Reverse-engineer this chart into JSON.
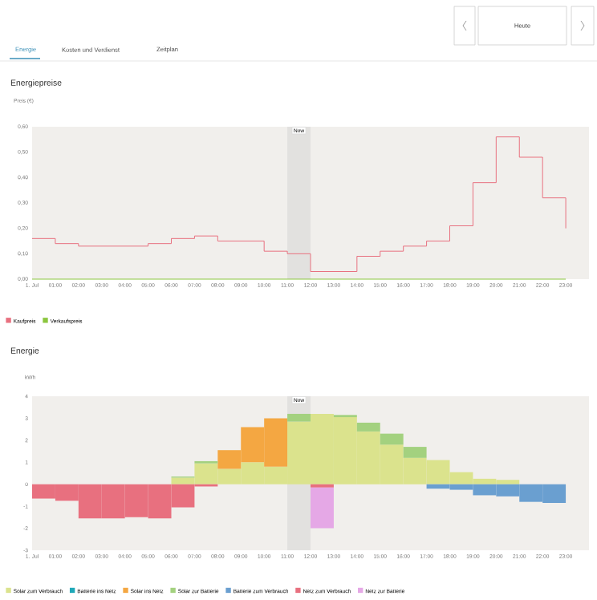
{
  "chart_data": [
    {
      "type": "step",
      "title": "Energiepreise",
      "ylabel": "Preis (€)",
      "annotations": [
        "Energie",
        "Kosten und Verdienst",
        "Zeitplan",
        "Heute"
      ],
      "x": [
        0,
        1,
        2,
        3,
        4,
        5,
        6,
        7,
        8,
        9,
        10,
        11,
        12,
        13,
        14,
        15,
        16,
        17,
        18,
        19,
        20,
        21,
        22,
        23
      ],
      "series": [
        {
          "name": "Kaufpreis",
          "color": "#e8707f",
          "values": [
            0.16,
            0.14,
            0.13,
            0.13,
            0.13,
            0.14,
            0.16,
            0.17,
            0.15,
            0.15,
            0.11,
            0.1,
            0.03,
            0.03,
            0.09,
            0.11,
            0.13,
            0.15,
            0.21,
            0.38,
            0.56,
            0.48,
            0.32,
            0.2
          ]
        },
        {
          "name": "Verkaufspreis",
          "color": "#8cc63f",
          "values": [
            0,
            0,
            0,
            0,
            0,
            0,
            0,
            0,
            0,
            0,
            0,
            0,
            0,
            0,
            0,
            0,
            0,
            0,
            0,
            0,
            0,
            0,
            0,
            0
          ]
        }
      ],
      "xlim": [
        0,
        24
      ],
      "xticks": [
        {
          "value": 0,
          "label": "1. Jul"
        },
        {
          "value": 1,
          "label": "01:00"
        },
        {
          "value": 2,
          "label": "02:00"
        },
        {
          "value": 3,
          "label": "03:00"
        },
        {
          "value": 4,
          "label": "04:00"
        },
        {
          "value": 5,
          "label": "05:00"
        },
        {
          "value": 6,
          "label": "06:00"
        },
        {
          "value": 7,
          "label": "07:00"
        },
        {
          "value": 8,
          "label": "08:00"
        },
        {
          "value": 9,
          "label": "09:00"
        },
        {
          "value": 10,
          "label": "10:00"
        },
        {
          "value": 11,
          "label": "11:00"
        },
        {
          "value": 12,
          "label": "12:00"
        },
        {
          "value": 13,
          "label": "13:00"
        },
        {
          "value": 14,
          "label": "14:00"
        },
        {
          "value": 15,
          "label": "15:00"
        },
        {
          "value": 16,
          "label": "16:00"
        },
        {
          "value": 17,
          "label": "17:00"
        },
        {
          "value": 18,
          "label": "18:00"
        },
        {
          "value": 19,
          "label": "19:00"
        },
        {
          "value": 20,
          "label": "20:00"
        },
        {
          "value": 21,
          "label": "21:00"
        },
        {
          "value": 22,
          "label": "22:00"
        },
        {
          "value": 23,
          "label": "23:00"
        }
      ],
      "ylim": [
        0,
        0.6
      ],
      "yticks": [
        {
          "value": 0,
          "label": "0,00"
        },
        {
          "value": 0.1,
          "label": "0,10"
        },
        {
          "value": 0.2,
          "label": "0,20"
        },
        {
          "value": 0.3,
          "label": "0,30"
        },
        {
          "value": 0.4,
          "label": "0,40"
        },
        {
          "value": 0.5,
          "label": "0,50"
        },
        {
          "value": 0.6,
          "label": "0,60"
        }
      ],
      "bands": [
        {
          "axis": "x",
          "from": 11,
          "to": 12,
          "label": "Now",
          "color": "#e2e1df"
        }
      ],
      "legend": "bottom left"
    },
    {
      "type": "bar",
      "stacked": true,
      "title": "Energie",
      "ylabel": "kWh",
      "x": [
        0.5,
        1.5,
        2.5,
        3.5,
        4.5,
        5.5,
        6.5,
        7.5,
        8.5,
        9.5,
        10.5,
        11.5,
        12.5,
        13.5,
        14.5,
        15.5,
        16.5,
        17.5,
        18.5,
        19.5,
        20.5,
        21.5,
        22.5
      ],
      "series": [
        {
          "name": "Solar zum Verbrauch",
          "color": "#dbe38d",
          "values": [
            null,
            null,
            null,
            null,
            null,
            null,
            0.3,
            0.95,
            0.7,
            1.0,
            0.8,
            2.85,
            3.2,
            3.05,
            2.4,
            1.8,
            1.2,
            1.1,
            0.55,
            0.25,
            0.2,
            null,
            null
          ]
        },
        {
          "name": "Batterie ins Netz",
          "color": "#1fa8b8",
          "values": [
            null,
            null,
            null,
            null,
            null,
            null,
            null,
            null,
            null,
            null,
            null,
            null,
            null,
            null,
            null,
            null,
            null,
            null,
            null,
            null,
            null,
            null,
            null
          ]
        },
        {
          "name": "Solar ins Netz",
          "color": "#f4a742",
          "values": [
            null,
            null,
            null,
            null,
            null,
            null,
            null,
            null,
            0.85,
            1.6,
            2.2,
            null,
            null,
            null,
            null,
            null,
            null,
            null,
            null,
            null,
            null,
            null,
            null
          ]
        },
        {
          "name": "Solar zur Batterie",
          "color": "#a3d17f",
          "values": [
            null,
            null,
            null,
            null,
            null,
            null,
            0.05,
            0.1,
            null,
            null,
            null,
            0.35,
            null,
            0.1,
            0.4,
            0.5,
            0.5,
            null,
            null,
            null,
            null,
            null,
            null
          ]
        },
        {
          "name": "Batterie zum Verbrauch",
          "color": "#6a9fd0",
          "values": [
            null,
            null,
            null,
            null,
            null,
            null,
            null,
            null,
            null,
            null,
            null,
            null,
            null,
            null,
            null,
            null,
            null,
            -0.2,
            -0.25,
            -0.5,
            -0.55,
            -0.8,
            -0.85
          ]
        },
        {
          "name": "Netz zum Verbrauch",
          "color": "#e8707f",
          "values": [
            -0.65,
            -0.75,
            -1.55,
            -1.55,
            -1.5,
            -1.55,
            -1.05,
            -0.1,
            null,
            null,
            null,
            null,
            -0.15,
            null,
            null,
            null,
            null,
            null,
            null,
            null,
            null,
            null,
            null
          ]
        },
        {
          "name": "Netz zur Batterie",
          "color": "#e5a8e6",
          "values": [
            null,
            null,
            null,
            null,
            null,
            null,
            null,
            null,
            null,
            null,
            null,
            null,
            -1.85,
            null,
            null,
            null,
            null,
            null,
            null,
            null,
            null,
            null,
            null
          ]
        }
      ],
      "xlim": [
        0,
        24
      ],
      "xticks": [
        {
          "value": 0,
          "label": "1. Jul"
        },
        {
          "value": 1,
          "label": "01:00"
        },
        {
          "value": 2,
          "label": "02:00"
        },
        {
          "value": 3,
          "label": "03:00"
        },
        {
          "value": 4,
          "label": "04:00"
        },
        {
          "value": 5,
          "label": "05:00"
        },
        {
          "value": 6,
          "label": "06:00"
        },
        {
          "value": 7,
          "label": "07:00"
        },
        {
          "value": 8,
          "label": "08:00"
        },
        {
          "value": 9,
          "label": "09:00"
        },
        {
          "value": 10,
          "label": "10:00"
        },
        {
          "value": 11,
          "label": "11:00"
        },
        {
          "value": 12,
          "label": "12:00"
        },
        {
          "value": 13,
          "label": "13:00"
        },
        {
          "value": 14,
          "label": "14:00"
        },
        {
          "value": 15,
          "label": "15:00"
        },
        {
          "value": 16,
          "label": "16:00"
        },
        {
          "value": 17,
          "label": "17:00"
        },
        {
          "value": 18,
          "label": "18:00"
        },
        {
          "value": 19,
          "label": "19:00"
        },
        {
          "value": 20,
          "label": "20:00"
        },
        {
          "value": 21,
          "label": "21:00"
        },
        {
          "value": 22,
          "label": "22:00"
        },
        {
          "value": 23,
          "label": "23:00"
        }
      ],
      "ylim": [
        -3,
        4
      ],
      "yticks": [
        -3,
        -2,
        -1,
        0,
        1,
        2,
        3,
        4
      ],
      "bands": [
        {
          "axis": "x",
          "from": 11,
          "to": 12,
          "label": "Now",
          "color": "#e2e1df"
        }
      ],
      "legend": "bottom left"
    }
  ]
}
